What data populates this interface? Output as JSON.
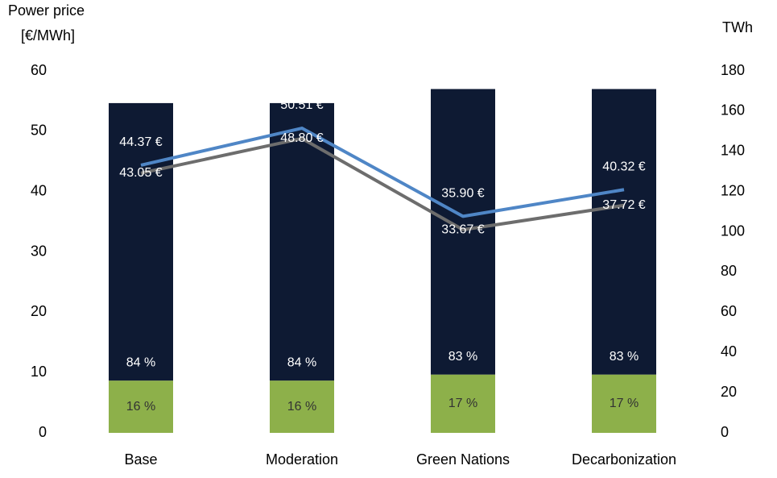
{
  "chart_data": {
    "type": "bar-line",
    "ylabel": [
      "Power price",
      "[€/MWh]"
    ],
    "y2label": "TWh",
    "categories": [
      "Base",
      "Moderation",
      "Green Nations",
      "Decarbonization"
    ],
    "ylim": [
      0,
      60
    ],
    "yticks": [
      0,
      10,
      20,
      30,
      40,
      50,
      60
    ],
    "y2lim": [
      0,
      180
    ],
    "y2ticks": [
      0,
      20,
      40,
      60,
      80,
      100,
      120,
      140,
      160,
      180
    ],
    "bars": [
      {
        "color": "#8db04a",
        "axis": "y2",
        "values": [
          26,
          26,
          29,
          29
        ],
        "shares": [
          {
            "value": 16,
            "label": "16 %"
          },
          {
            "value": 16,
            "label": "16 %"
          },
          {
            "value": 17,
            "label": "17 %"
          },
          {
            "value": 17,
            "label": "17 %"
          }
        ]
      },
      {
        "color": "#0e1a33",
        "axis": "y2",
        "values": [
          138,
          138,
          142,
          142
        ],
        "shares": [
          {
            "value": 84,
            "label": "84 %"
          },
          {
            "value": 84,
            "label": "84 %"
          },
          {
            "value": 83,
            "label": "83 %"
          },
          {
            "value": 83,
            "label": "83 %"
          }
        ]
      }
    ],
    "series": [
      {
        "color": "#4f86c6",
        "values": [
          44.37,
          50.51,
          35.9,
          40.32
        ],
        "value_labels": [
          "44.37 €",
          "50.51 €",
          "35.90 €",
          "40.32 €"
        ]
      },
      {
        "color": "#6d6d6d",
        "values": [
          43.05,
          48.8,
          33.67,
          37.72
        ],
        "value_labels": [
          "43.05 €",
          "48.80 €",
          "33.67 €",
          "37.72 €"
        ]
      }
    ]
  }
}
